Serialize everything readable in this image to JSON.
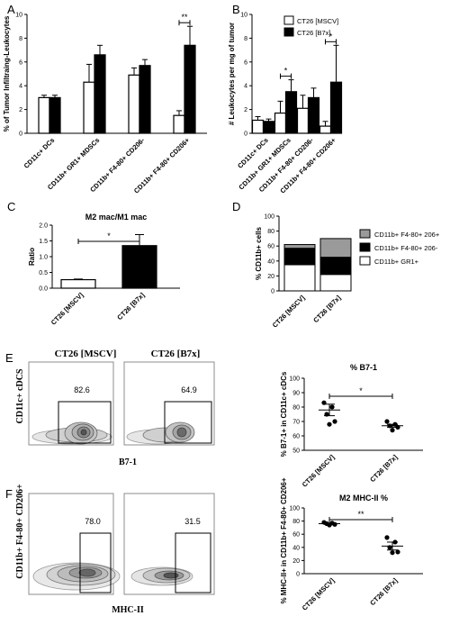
{
  "panels": {
    "A": {
      "letter": "A"
    },
    "B": {
      "letter": "B"
    },
    "C": {
      "letter": "C"
    },
    "D": {
      "letter": "D"
    },
    "E": {
      "letter": "E",
      "flow_headers": [
        "CT26 [MSCV]",
        "CT26 [B7x]"
      ],
      "flow_ylabel": "CD11c+ cDCS",
      "flow_xlabel": "B7-1",
      "gate_values": [
        "82.6",
        "64.9"
      ]
    },
    "F": {
      "letter": "F",
      "flow_ylabel": "CD11b+ F4-80+ CD206+",
      "flow_xlabel": "MHC-II",
      "gate_values": [
        "78.0",
        "31.5"
      ]
    }
  },
  "chart_data": [
    {
      "id": "A",
      "type": "bar",
      "categories": [
        "CD11c+ DCs",
        "CD11b+ GR1+ MDSCs",
        "CD11b+ F4-80+ CD206-",
        "CD11b+ F4-80+ CD206+"
      ],
      "series": [
        {
          "name": "CT26 [MSCV]",
          "color": "#ffffff",
          "values": [
            3.0,
            4.3,
            4.9,
            1.5
          ],
          "errors": [
            0.2,
            1.5,
            0.6,
            0.4
          ]
        },
        {
          "name": "CT26 [B7x]",
          "color": "#000000",
          "values": [
            3.0,
            6.6,
            5.7,
            7.4
          ],
          "errors": [
            0.2,
            0.8,
            0.5,
            1.6
          ]
        }
      ],
      "ylabel": "% of Tumor Infiltraing-Leukocytes",
      "ylim": [
        0,
        10
      ],
      "yticks": [
        "0",
        "2",
        "4",
        "6",
        "8",
        "10"
      ],
      "significance": [
        {
          "category_index": 3,
          "label": "**"
        }
      ]
    },
    {
      "id": "B",
      "type": "bar",
      "categories": [
        "CD11c+ DCs",
        "CD11b+ GR1+ MDSCs",
        "CD11b+ F4-80+ CD206-",
        "CD11b+ F4-80+ CD206+"
      ],
      "series": [
        {
          "name": "CT26 [MSCV]",
          "color": "#ffffff",
          "values": [
            1.1,
            1.7,
            2.1,
            0.6
          ],
          "errors": [
            0.3,
            1.0,
            1.1,
            0.4
          ]
        },
        {
          "name": "CT26 [B7x]",
          "color": "#000000",
          "values": [
            1.0,
            3.5,
            3.0,
            4.3
          ],
          "errors": [
            0.2,
            1.0,
            0.8,
            3.1
          ]
        }
      ],
      "ylabel": "# Leukocytes per mg of tumor",
      "ylim": [
        0,
        10
      ],
      "yticks": [
        "0",
        "2",
        "4",
        "6",
        "8",
        "10"
      ],
      "legend": [
        "CT26 [MSCV]",
        "CT26 [B7x]"
      ],
      "legend_position": "top-right",
      "significance": [
        {
          "category_index": 1,
          "label": "*"
        },
        {
          "category_index": 3,
          "label": "*"
        }
      ]
    },
    {
      "id": "C",
      "type": "bar",
      "title": "M2 mac/M1 mac",
      "categories": [
        "CT26 [MSCV]",
        "CT26 [B7x]"
      ],
      "series": [
        {
          "name": "",
          "colors": [
            "#ffffff",
            "#000000"
          ],
          "values": [
            0.27,
            1.35
          ],
          "errors": [
            0.02,
            0.35
          ]
        }
      ],
      "ylabel": "Ratio",
      "ylim": [
        0,
        2
      ],
      "yticks": [
        "0.0",
        "0.5",
        "1.0",
        "1.5",
        "2.0"
      ],
      "significance": [
        {
          "between": [
            0,
            1
          ],
          "label": "*"
        }
      ]
    },
    {
      "id": "D",
      "type": "bar",
      "stacked": true,
      "categories": [
        "CT26 [MSCV]",
        "CT26 [B7x]"
      ],
      "series": [
        {
          "name": "CD11b+ GR1+",
          "color": "#ffffff",
          "values": [
            35,
            22
          ]
        },
        {
          "name": "CD11b+ F4-80+ 206-",
          "color": "#000000",
          "values": [
            22,
            23
          ]
        },
        {
          "name": "CD11b+ F4-80+ 206+",
          "color": "#9a9a9a",
          "values": [
            5,
            25
          ]
        }
      ],
      "legend_order": [
        "CD11b+ F4-80+ 206+",
        "CD11b+ F4-80+ 206-",
        "CD11b+ GR1+"
      ],
      "ylabel": "% CD11b+ cells",
      "ylim": [
        0,
        100
      ],
      "yticks": [
        "0",
        "20",
        "40",
        "60",
        "80",
        "100"
      ]
    },
    {
      "id": "E",
      "type": "scatter",
      "title": "% B7-1",
      "categories": [
        "CT26 [MSCV]",
        "CT26 [B7x]"
      ],
      "points": [
        [
          83,
          80,
          75,
          70,
          68
        ],
        [
          70,
          68,
          67,
          66,
          64
        ]
      ],
      "means": [
        78,
        67
      ],
      "sems": [
        4,
        1
      ],
      "ylabel": "% B7-1+ in CD11c+ cDCs",
      "ylim": [
        50,
        100
      ],
      "yticks": [
        "50",
        "60",
        "70",
        "80",
        "90",
        "100"
      ],
      "significance": [
        {
          "between": [
            0,
            1
          ],
          "label": "*"
        }
      ]
    },
    {
      "id": "F",
      "type": "scatter",
      "title": "M2 MHC-II %",
      "categories": [
        "CT26 [MSCV]",
        "CT26 [B7x]"
      ],
      "points": [
        [
          78,
          77,
          76,
          75,
          74
        ],
        [
          55,
          48,
          40,
          33,
          32
        ]
      ],
      "means": [
        76,
        42
      ],
      "sems": [
        1,
        6
      ],
      "ylabel": "% MHC-II+ in CD11b+ F4-80+ CD206+",
      "ylim": [
        0,
        100
      ],
      "yticks": [
        "0",
        "20",
        "40",
        "60",
        "80",
        "100"
      ],
      "significance": [
        {
          "between": [
            0,
            1
          ],
          "label": "**"
        }
      ]
    }
  ]
}
